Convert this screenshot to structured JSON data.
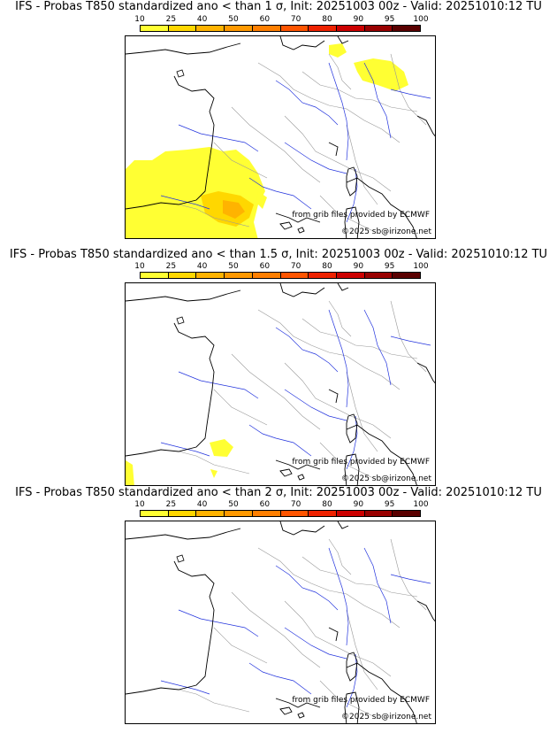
{
  "panels": [
    {
      "title": "IFS - Probas T850  standardized ano < than 1 σ, Init: 20251003 00z - Valid: 20251010:12 TU",
      "credit_grib": "from grib files provided by ECMWF",
      "credit_copyright": "©2025 sb@irizone.net",
      "prob_level": "1 σ"
    },
    {
      "title": "IFS - Probas T850  standardized ano < than 1.5 σ, Init: 20251003 00z - Valid: 20251010:12 TU",
      "credit_grib": "from grib files provided by ECMWF",
      "credit_copyright": "©2025 sb@irizone.net",
      "prob_level": "1.5 σ"
    },
    {
      "title": "IFS - Probas T850  standardized ano < than 2 σ, Init: 20251003 00z - Valid: 20251010:12 TU",
      "credit_grib": "from grib files provided by ECMWF",
      "credit_copyright": "©2025 sb@irizone.net",
      "prob_level": "2 σ"
    }
  ],
  "colorbar": {
    "ticks": [
      "10",
      "25",
      "40",
      "50",
      "60",
      "70",
      "80",
      "90",
      "95",
      "100"
    ],
    "colors": [
      "#ffff33",
      "#ffd700",
      "#ffb300",
      "#ff9900",
      "#ff7f00",
      "#ff5500",
      "#ee2200",
      "#cc0000",
      "#990000",
      "#5a0000"
    ]
  },
  "colors": {
    "coast": "#000000",
    "rivers": "#2233dd",
    "borders": "#999999",
    "prob_low": "#ffff33",
    "prob_mid": "#ffd700",
    "prob_high": "#ffb300"
  }
}
